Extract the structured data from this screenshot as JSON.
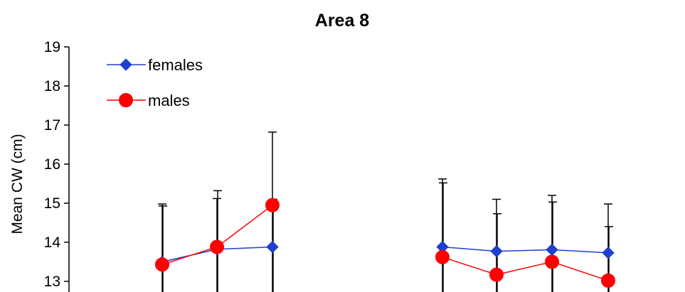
{
  "chart_data": {
    "type": "line",
    "title": "Area 8",
    "xlabel": "",
    "ylabel": "Mean CW (cm)",
    "ylim": [
      12.7,
      19.0
    ],
    "yticks": [
      13,
      14,
      15,
      16,
      17,
      18,
      19
    ],
    "grid": false,
    "legend": "top-left",
    "series": [
      {
        "name": "females",
        "color": "#1f3fd1",
        "marker": "diamond",
        "groups": [
          {
            "points": [
              {
                "y": 13.5,
                "err_high": 14.98
              },
              {
                "y": 13.82,
                "err_high": 15.12
              },
              {
                "y": 13.88,
                "err_high": 16.82
              }
            ]
          },
          {
            "points": [
              {
                "y": 13.88,
                "err_high": 15.62
              },
              {
                "y": 13.77,
                "err_high": 15.1
              },
              {
                "y": 13.81,
                "err_high": 15.2
              },
              {
                "y": 13.73,
                "err_high": 14.98
              }
            ]
          }
        ]
      },
      {
        "name": "males",
        "color": "#ff0000",
        "marker": "circle",
        "groups": [
          {
            "points": [
              {
                "y": 13.43,
                "err_high": 14.93
              },
              {
                "y": 13.88,
                "err_high": 15.32
              },
              {
                "y": 14.95,
                "err_high": 15.1
              }
            ]
          },
          {
            "points": [
              {
                "y": 13.62,
                "err_high": 15.52
              },
              {
                "y": 13.17,
                "err_high": 14.73
              },
              {
                "y": 13.5,
                "err_high": 15.03
              },
              {
                "y": 13.02,
                "err_high": 14.4
              }
            ]
          }
        ]
      }
    ]
  }
}
